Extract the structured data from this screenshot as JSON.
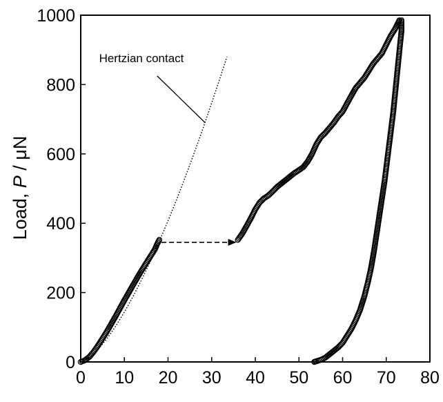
{
  "chart_data": {
    "type": "scatter",
    "title": "",
    "xlabel": "",
    "ylabel_prefix": "Load, ",
    "ylabel_var": "P",
    "ylabel_suffix": " / μN",
    "xlim": [
      0,
      80
    ],
    "ylim": [
      0,
      1000
    ],
    "xticks": [
      0,
      10,
      20,
      30,
      40,
      50,
      60,
      70,
      80
    ],
    "yticks": [
      0,
      200,
      400,
      600,
      800,
      1000
    ],
    "grid": false,
    "legend": "none",
    "series": [
      {
        "role": "loading-before-popin",
        "marker": "open-circle",
        "color": "#000000",
        "points": [
          [
            0,
            0
          ],
          [
            1,
            5
          ],
          [
            2,
            15
          ],
          [
            3,
            30
          ],
          [
            4,
            48
          ],
          [
            5,
            68
          ],
          [
            6,
            88
          ],
          [
            7,
            110
          ],
          [
            8,
            132
          ],
          [
            9,
            155
          ],
          [
            10,
            178
          ],
          [
            11,
            200
          ],
          [
            12,
            222
          ],
          [
            13,
            244
          ],
          [
            14,
            265
          ],
          [
            15,
            285
          ],
          [
            16,
            305
          ],
          [
            17,
            325
          ],
          [
            17.5,
            340
          ],
          [
            18,
            352
          ]
        ]
      },
      {
        "role": "loading-after-popin",
        "marker": "open-circle",
        "color": "#000000",
        "points": [
          [
            36,
            352
          ],
          [
            37,
            370
          ],
          [
            38,
            392
          ],
          [
            39,
            415
          ],
          [
            40,
            440
          ],
          [
            41,
            460
          ],
          [
            42,
            472
          ],
          [
            43,
            480
          ],
          [
            44,
            492
          ],
          [
            45,
            505
          ],
          [
            46,
            515
          ],
          [
            47,
            525
          ],
          [
            48,
            535
          ],
          [
            49,
            545
          ],
          [
            50,
            553
          ],
          [
            51,
            562
          ],
          [
            52,
            578
          ],
          [
            53,
            600
          ],
          [
            54,
            628
          ],
          [
            55,
            648
          ],
          [
            56,
            660
          ],
          [
            57,
            675
          ],
          [
            58,
            690
          ],
          [
            59,
            708
          ],
          [
            60,
            722
          ],
          [
            61,
            745
          ],
          [
            62,
            768
          ],
          [
            63,
            790
          ],
          [
            64,
            805
          ],
          [
            65,
            820
          ],
          [
            66,
            840
          ],
          [
            67,
            860
          ],
          [
            68,
            875
          ],
          [
            69,
            890
          ],
          [
            70,
            915
          ],
          [
            71,
            940
          ],
          [
            72,
            960
          ],
          [
            72.6,
            975
          ],
          [
            73,
            985
          ]
        ]
      },
      {
        "role": "unloading",
        "marker": "open-circle",
        "color": "#000000",
        "points": [
          [
            73.5,
            985
          ],
          [
            73.5,
            955
          ],
          [
            73.2,
            920
          ],
          [
            72.8,
            870
          ],
          [
            72.4,
            820
          ],
          [
            72,
            770
          ],
          [
            71.6,
            720
          ],
          [
            71.1,
            670
          ],
          [
            70.6,
            620
          ],
          [
            70.1,
            570
          ],
          [
            69.6,
            520
          ],
          [
            69,
            470
          ],
          [
            68.4,
            420
          ],
          [
            67.8,
            370
          ],
          [
            67.2,
            320
          ],
          [
            66.5,
            270
          ],
          [
            65.8,
            230
          ],
          [
            65,
            190
          ],
          [
            64,
            150
          ],
          [
            63,
            120
          ],
          [
            62,
            95
          ],
          [
            61,
            75
          ],
          [
            60,
            55
          ],
          [
            59,
            42
          ],
          [
            58,
            32
          ],
          [
            57,
            22
          ],
          [
            56,
            12
          ],
          [
            55,
            6
          ],
          [
            54,
            2
          ],
          [
            53.5,
            0
          ]
        ]
      },
      {
        "role": "hertzian-fit",
        "style": "dotted",
        "color": "#000000",
        "points": [
          [
            0,
            0
          ],
          [
            2,
            12
          ],
          [
            4,
            36
          ],
          [
            6,
            67
          ],
          [
            8,
            103
          ],
          [
            10,
            144
          ],
          [
            12,
            189
          ],
          [
            14,
            239
          ],
          [
            16,
            291
          ],
          [
            18,
            348
          ],
          [
            20,
            407
          ],
          [
            22,
            469
          ],
          [
            24,
            535
          ],
          [
            26,
            603
          ],
          [
            28,
            673
          ],
          [
            30,
            747
          ],
          [
            32,
            822
          ],
          [
            33.5,
            880
          ]
        ]
      },
      {
        "role": "pop-in-arrow",
        "style": "dashed-arrow",
        "color": "#000000",
        "points": [
          [
            18.5,
            345
          ],
          [
            35.5,
            345
          ]
        ]
      }
    ],
    "annotations": [
      {
        "text": "Hertzian contact",
        "text_at": [
          4.2,
          865
        ],
        "pointer_from": [
          17.5,
          825
        ],
        "pointer_to": [
          28.5,
          690
        ]
      }
    ]
  }
}
